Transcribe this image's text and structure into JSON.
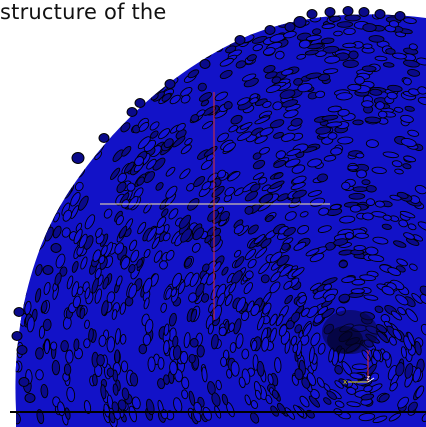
{
  "caption": "structure of the",
  "colors": {
    "background": "#ffffff",
    "particle_fill": "#1414d8",
    "particle_dark": "#0a0a8a",
    "particle_outline": "#000000",
    "crosshair_horizontal": "#ffe9a8",
    "crosshair_vertical": "#e03030",
    "axis_x": "#e8e000",
    "axis_y": "#e03030",
    "axis_z": "#ffffff"
  },
  "axes": {
    "x": "x",
    "y": "y",
    "z": "z"
  }
}
